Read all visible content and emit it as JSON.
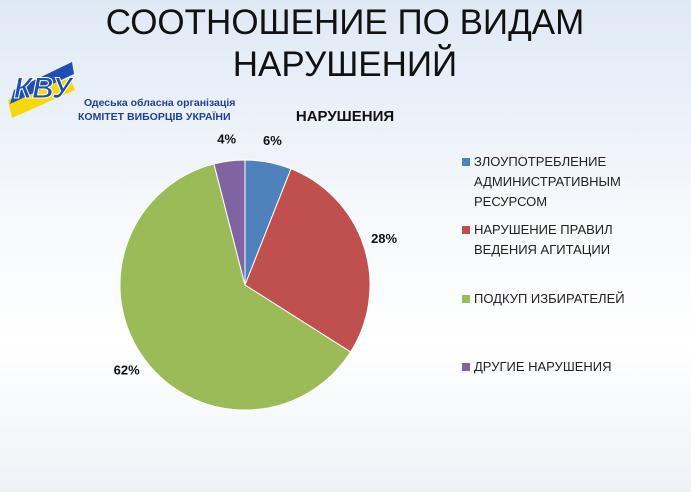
{
  "slide_title": "СООТНОШЕНИЕ ПО ВИДАМ НАРУШЕНИЙ",
  "logo": {
    "mark": "КВУ",
    "line1": "Одеська обласна організація",
    "line2": "КОМІТЕТ ВИБОРЦІВ УКРАЇНИ"
  },
  "chart_data": {
    "type": "pie",
    "title": "НАРУШЕНИЯ",
    "categories": [
      "ЗЛОУПОТРЕБЛЕНИЕ АДМИНИСТРАТИВНЫМ РЕСУРСОМ",
      "НАРУШЕНИЕ ПРАВИЛ ВЕДЕНИЯ АГИТАЦИИ",
      "ПОДКУП ИЗБИРАТЕЛЕЙ",
      "ДРУГИЕ НАРУШЕНИЯ"
    ],
    "values": [
      6,
      28,
      62,
      4
    ],
    "value_labels": [
      "6%",
      "28%",
      "62%",
      "4%"
    ],
    "colors": [
      "#4f81bd",
      "#c0504d",
      "#9bbb59",
      "#8064a2"
    ],
    "legend": "right"
  }
}
